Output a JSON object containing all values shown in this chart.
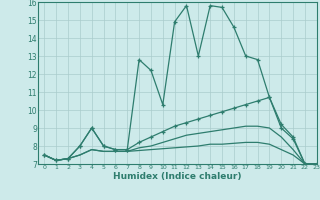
{
  "x": [
    0,
    1,
    2,
    3,
    4,
    5,
    6,
    7,
    8,
    9,
    10,
    11,
    12,
    13,
    14,
    15,
    16,
    17,
    18,
    19,
    20,
    21,
    22,
    23
  ],
  "line1": [
    7.5,
    7.2,
    7.3,
    8.0,
    9.0,
    8.0,
    7.8,
    7.8,
    12.8,
    12.2,
    10.3,
    14.9,
    15.8,
    13.0,
    15.8,
    15.7,
    14.6,
    13.0,
    12.8,
    10.7,
    9.0,
    8.4,
    7.0,
    7.0
  ],
  "line2": [
    7.5,
    7.2,
    7.3,
    8.0,
    9.0,
    8.0,
    7.8,
    7.8,
    8.2,
    8.5,
    8.8,
    9.1,
    9.3,
    9.5,
    9.7,
    9.9,
    10.1,
    10.3,
    10.5,
    10.7,
    9.2,
    8.5,
    7.0,
    7.0
  ],
  "line3": [
    7.5,
    7.2,
    7.3,
    7.5,
    7.8,
    7.7,
    7.7,
    7.7,
    7.75,
    7.8,
    7.85,
    7.9,
    7.95,
    8.0,
    8.1,
    8.1,
    8.15,
    8.2,
    8.2,
    8.1,
    7.8,
    7.5,
    7.0,
    7.0
  ],
  "line4": [
    7.5,
    7.2,
    7.3,
    7.5,
    7.8,
    7.7,
    7.7,
    7.7,
    7.9,
    8.0,
    8.2,
    8.4,
    8.6,
    8.7,
    8.8,
    8.9,
    9.0,
    9.1,
    9.1,
    9.0,
    8.5,
    7.8,
    7.0,
    7.0
  ],
  "line_color": "#2e7d6e",
  "bg_color": "#cdeaea",
  "grid_color": "#aacccc",
  "xlabel": "Humidex (Indice chaleur)",
  "ylim": [
    7,
    16
  ],
  "xlim": [
    -0.5,
    23
  ],
  "yticks": [
    7,
    8,
    9,
    10,
    11,
    12,
    13,
    14,
    15,
    16
  ],
  "xticks": [
    0,
    1,
    2,
    3,
    4,
    5,
    6,
    7,
    8,
    9,
    10,
    11,
    12,
    13,
    14,
    15,
    16,
    17,
    18,
    19,
    20,
    21,
    22,
    23
  ]
}
